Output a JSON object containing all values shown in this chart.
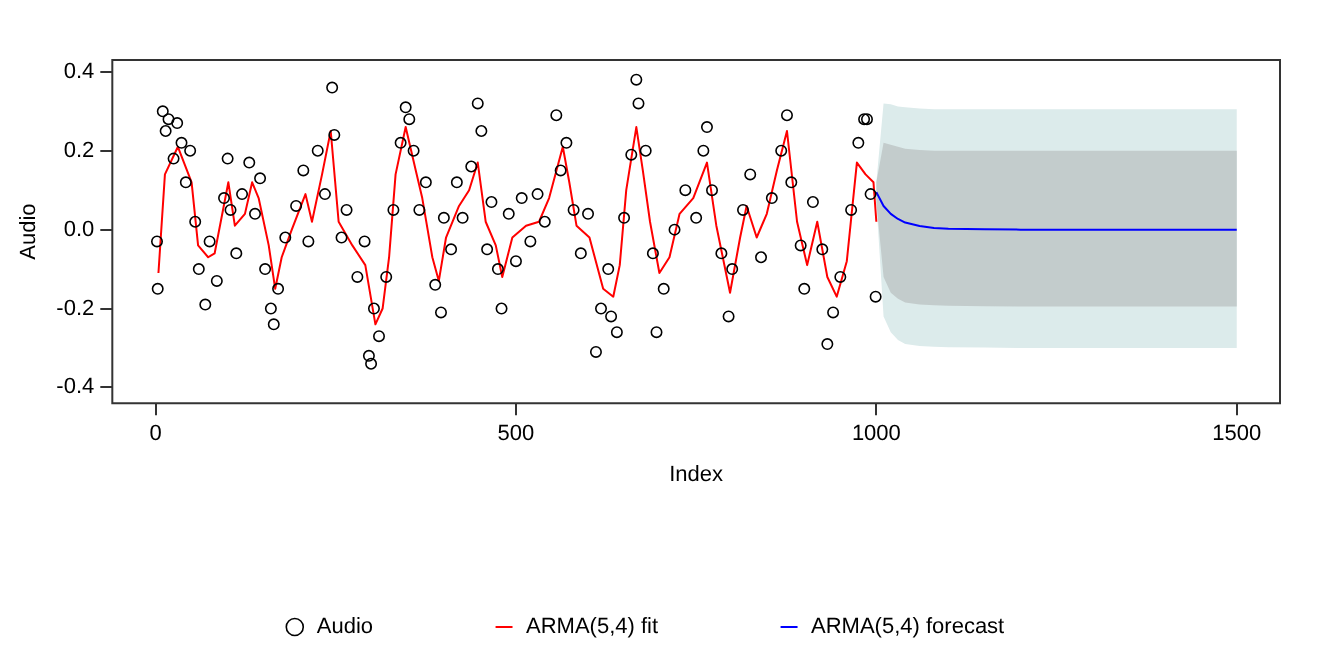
{
  "chart_data": {
    "type": "scatter",
    "xlabel": "Index",
    "ylabel": "Audio",
    "xlim": [
      -60,
      1560
    ],
    "ylim": [
      -0.44,
      0.43
    ],
    "xticks": [
      0,
      500,
      1000,
      1500
    ],
    "yticks": [
      -0.4,
      -0.2,
      {
        "value": 0,
        "label": "0.0"
      },
      0.2,
      0.4
    ],
    "grid": false,
    "legend": "bottom",
    "series": [
      {
        "name": "Audio",
        "marker": "circle",
        "color": "#000000",
        "x": [
          2,
          3,
          10,
          14,
          18,
          25,
          30,
          36,
          42,
          48,
          55,
          60,
          69,
          75,
          85,
          95,
          100,
          104,
          112,
          120,
          130,
          138,
          145,
          152,
          160,
          164,
          170,
          180,
          195,
          205,
          212,
          225,
          235,
          245,
          248,
          258,
          265,
          280,
          290,
          296,
          299,
          303,
          310,
          320,
          330,
          340,
          347,
          352,
          358,
          366,
          375,
          388,
          396,
          400,
          410,
          418,
          426,
          438,
          447,
          452,
          460,
          466,
          475,
          480,
          490,
          500,
          508,
          520,
          530,
          540,
          556,
          562,
          570,
          580,
          590,
          600,
          611,
          618,
          628,
          632,
          640,
          650,
          660,
          667,
          670,
          680,
          690,
          695,
          705,
          720,
          735,
          750,
          760,
          765,
          772,
          785,
          795,
          800,
          815,
          825,
          840,
          855,
          868,
          876,
          882,
          895,
          900,
          912,
          925,
          932,
          940,
          950,
          965,
          975,
          983,
          987,
          992,
          999
        ],
        "values": [
          -0.03,
          -0.15,
          0.3,
          0.25,
          0.28,
          0.18,
          0.27,
          0.22,
          0.12,
          0.2,
          0.02,
          -0.1,
          -0.19,
          -0.03,
          -0.13,
          0.08,
          0.18,
          0.05,
          -0.06,
          0.09,
          0.17,
          0.04,
          0.13,
          -0.1,
          -0.2,
          -0.24,
          -0.15,
          -0.02,
          0.06,
          0.15,
          -0.03,
          0.2,
          0.09,
          0.36,
          0.24,
          -0.02,
          0.05,
          -0.12,
          -0.03,
          -0.32,
          -0.34,
          -0.2,
          -0.27,
          -0.12,
          0.05,
          0.22,
          0.31,
          0.28,
          0.2,
          0.05,
          0.12,
          -0.14,
          -0.21,
          0.03,
          -0.05,
          0.12,
          0.03,
          0.16,
          0.32,
          0.25,
          -0.05,
          0.07,
          -0.1,
          -0.2,
          0.04,
          -0.08,
          0.08,
          -0.03,
          0.09,
          0.02,
          0.29,
          0.15,
          0.22,
          0.05,
          -0.06,
          0.04,
          -0.31,
          -0.2,
          -0.1,
          -0.22,
          -0.26,
          0.03,
          0.19,
          0.38,
          0.32,
          0.2,
          -0.06,
          -0.26,
          -0.15,
          0.0,
          0.1,
          0.03,
          0.2,
          0.26,
          0.1,
          -0.06,
          -0.22,
          -0.1,
          0.05,
          0.14,
          -0.07,
          0.08,
          0.2,
          0.29,
          0.12,
          -0.04,
          -0.15,
          0.07,
          -0.05,
          -0.29,
          -0.21,
          -0.12,
          0.05,
          0.22,
          0.28,
          0.28,
          0.09,
          -0.17
        ]
      },
      {
        "name": "ARMA(5,4) fit",
        "type": "line",
        "color": "#ff0000",
        "x": [
          4,
          13,
          31,
          50,
          59,
          73,
          82,
          101,
          110,
          124,
          134,
          143,
          157,
          166,
          175,
          189,
          208,
          217,
          231,
          243,
          254,
          273,
          291,
          305,
          315,
          324,
          333,
          347,
          361,
          370,
          384,
          393,
          403,
          421,
          435,
          447,
          458,
          472,
          481,
          495,
          514,
          532,
          546,
          565,
          574,
          584,
          602,
          621,
          635,
          644,
          653,
          667,
          676,
          686,
          699,
          713,
          727,
          746,
          765,
          778,
          797,
          811,
          820,
          834,
          848,
          862,
          876,
          890,
          904,
          918,
          932,
          945,
          959,
          973,
          985,
          996,
          1000
        ],
        "values": [
          -0.11,
          0.14,
          0.21,
          0.12,
          -0.04,
          -0.07,
          -0.06,
          0.12,
          0.01,
          0.04,
          0.12,
          0.08,
          -0.04,
          -0.15,
          -0.07,
          0,
          0.09,
          0.02,
          0.14,
          0.25,
          0.02,
          -0.04,
          -0.09,
          -0.24,
          -0.2,
          -0.07,
          0.14,
          0.26,
          0.15,
          0.08,
          -0.07,
          -0.13,
          -0.02,
          0.06,
          0.1,
          0.17,
          0.02,
          -0.04,
          -0.12,
          -0.02,
          0.01,
          0.02,
          0.08,
          0.21,
          0.12,
          0.01,
          -0.02,
          -0.15,
          -0.17,
          -0.09,
          0.1,
          0.26,
          0.15,
          0.02,
          -0.11,
          -0.07,
          0.04,
          0.08,
          0.17,
          0.01,
          -0.16,
          -0.02,
          0.06,
          -0.02,
          0.04,
          0.15,
          0.25,
          0.02,
          -0.09,
          0.02,
          -0.12,
          -0.17,
          -0.08,
          0.17,
          0.14,
          0.12,
          0.02
        ]
      },
      {
        "name": "ARMA(5,4) forecast",
        "type": "line",
        "color": "#0000ff",
        "x": [
          1000,
          1010,
          1020,
          1030,
          1040,
          1060,
          1080,
          1100,
          1150,
          1200,
          1300,
          1400,
          1500
        ],
        "values": [
          0.095,
          0.06,
          0.04,
          0.027,
          0.018,
          0.009,
          0.004,
          0.002,
          0.001,
          0,
          0,
          0,
          0
        ],
        "lower": [
          0.07,
          -0.12,
          -0.16,
          -0.175,
          -0.185,
          -0.19,
          -0.192,
          -0.193,
          -0.194,
          -0.195,
          -0.195,
          -0.195,
          -0.195
        ],
        "upper": [
          0.12,
          0.22,
          0.215,
          0.21,
          0.205,
          0.202,
          0.2,
          0.2,
          0.2,
          0.2,
          0.2,
          0.2,
          0.2
        ]
      },
      {
        "type": "line",
        "color": "#0000ff",
        "x": [
          1000,
          1010,
          1020,
          1030,
          1040,
          1060,
          1080,
          1100,
          1150,
          1200,
          1300,
          1400,
          1500
        ],
        "values": [
          null,
          null,
          null,
          null,
          null,
          null,
          null,
          null,
          null,
          null,
          null,
          null,
          null
        ],
        "lower": [
          0.07,
          -0.22,
          -0.26,
          -0.28,
          -0.29,
          -0.295,
          -0.297,
          -0.298,
          -0.299,
          -0.3,
          -0.3,
          -0.3,
          -0.3
        ],
        "upper": [
          0.12,
          0.32,
          0.318,
          0.312,
          0.31,
          0.307,
          0.305,
          0.305,
          0.305,
          0.305,
          0.305,
          0.305,
          0.305
        ]
      }
    ]
  }
}
